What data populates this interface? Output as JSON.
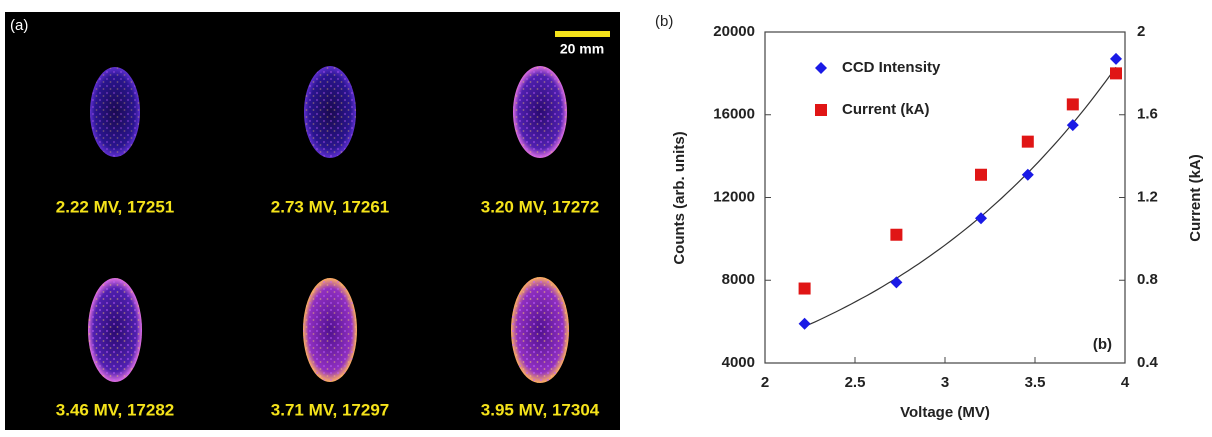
{
  "panel_a": {
    "tag": "(a)",
    "scale_bar": "20 mm",
    "labels": [
      "2.22 MV, 17251",
      "2.73 MV, 17261",
      "3.20 MV, 17272",
      "3.46 MV, 17282",
      "3.71 MV, 17297",
      "3.95 MV, 17304"
    ]
  },
  "chart_data": {
    "type": "scatter",
    "tag": "(b)",
    "annotation": "(b)",
    "x_label": "Voltage (MV)",
    "y_label": "Counts (arb. units)",
    "y2_label": "Current (kA)",
    "xlim": [
      2,
      4
    ],
    "xticks": [
      2,
      2.5,
      3,
      3.5,
      4
    ],
    "ylim": [
      4000,
      20000
    ],
    "yticks": [
      4000,
      8000,
      12000,
      16000,
      20000
    ],
    "y2lim": [
      0.4,
      2
    ],
    "y2ticks": [
      0.4,
      0.8,
      1.2,
      1.6,
      2
    ],
    "x": [
      2.22,
      2.73,
      3.2,
      3.46,
      3.71,
      3.95
    ],
    "series": [
      {
        "name": "CCD Intensity",
        "color": "#1a1ae6",
        "marker": "diamond",
        "values": [
          5900,
          7900,
          11000,
          13100,
          15500,
          18700
        ]
      },
      {
        "name": "Current (kA)",
        "color": "#e01515",
        "marker": "square",
        "axis": "y2",
        "values": [
          0.76,
          1.02,
          1.31,
          1.47,
          1.65,
          1.8
        ]
      }
    ],
    "trendline": true,
    "legend": "top-left"
  }
}
